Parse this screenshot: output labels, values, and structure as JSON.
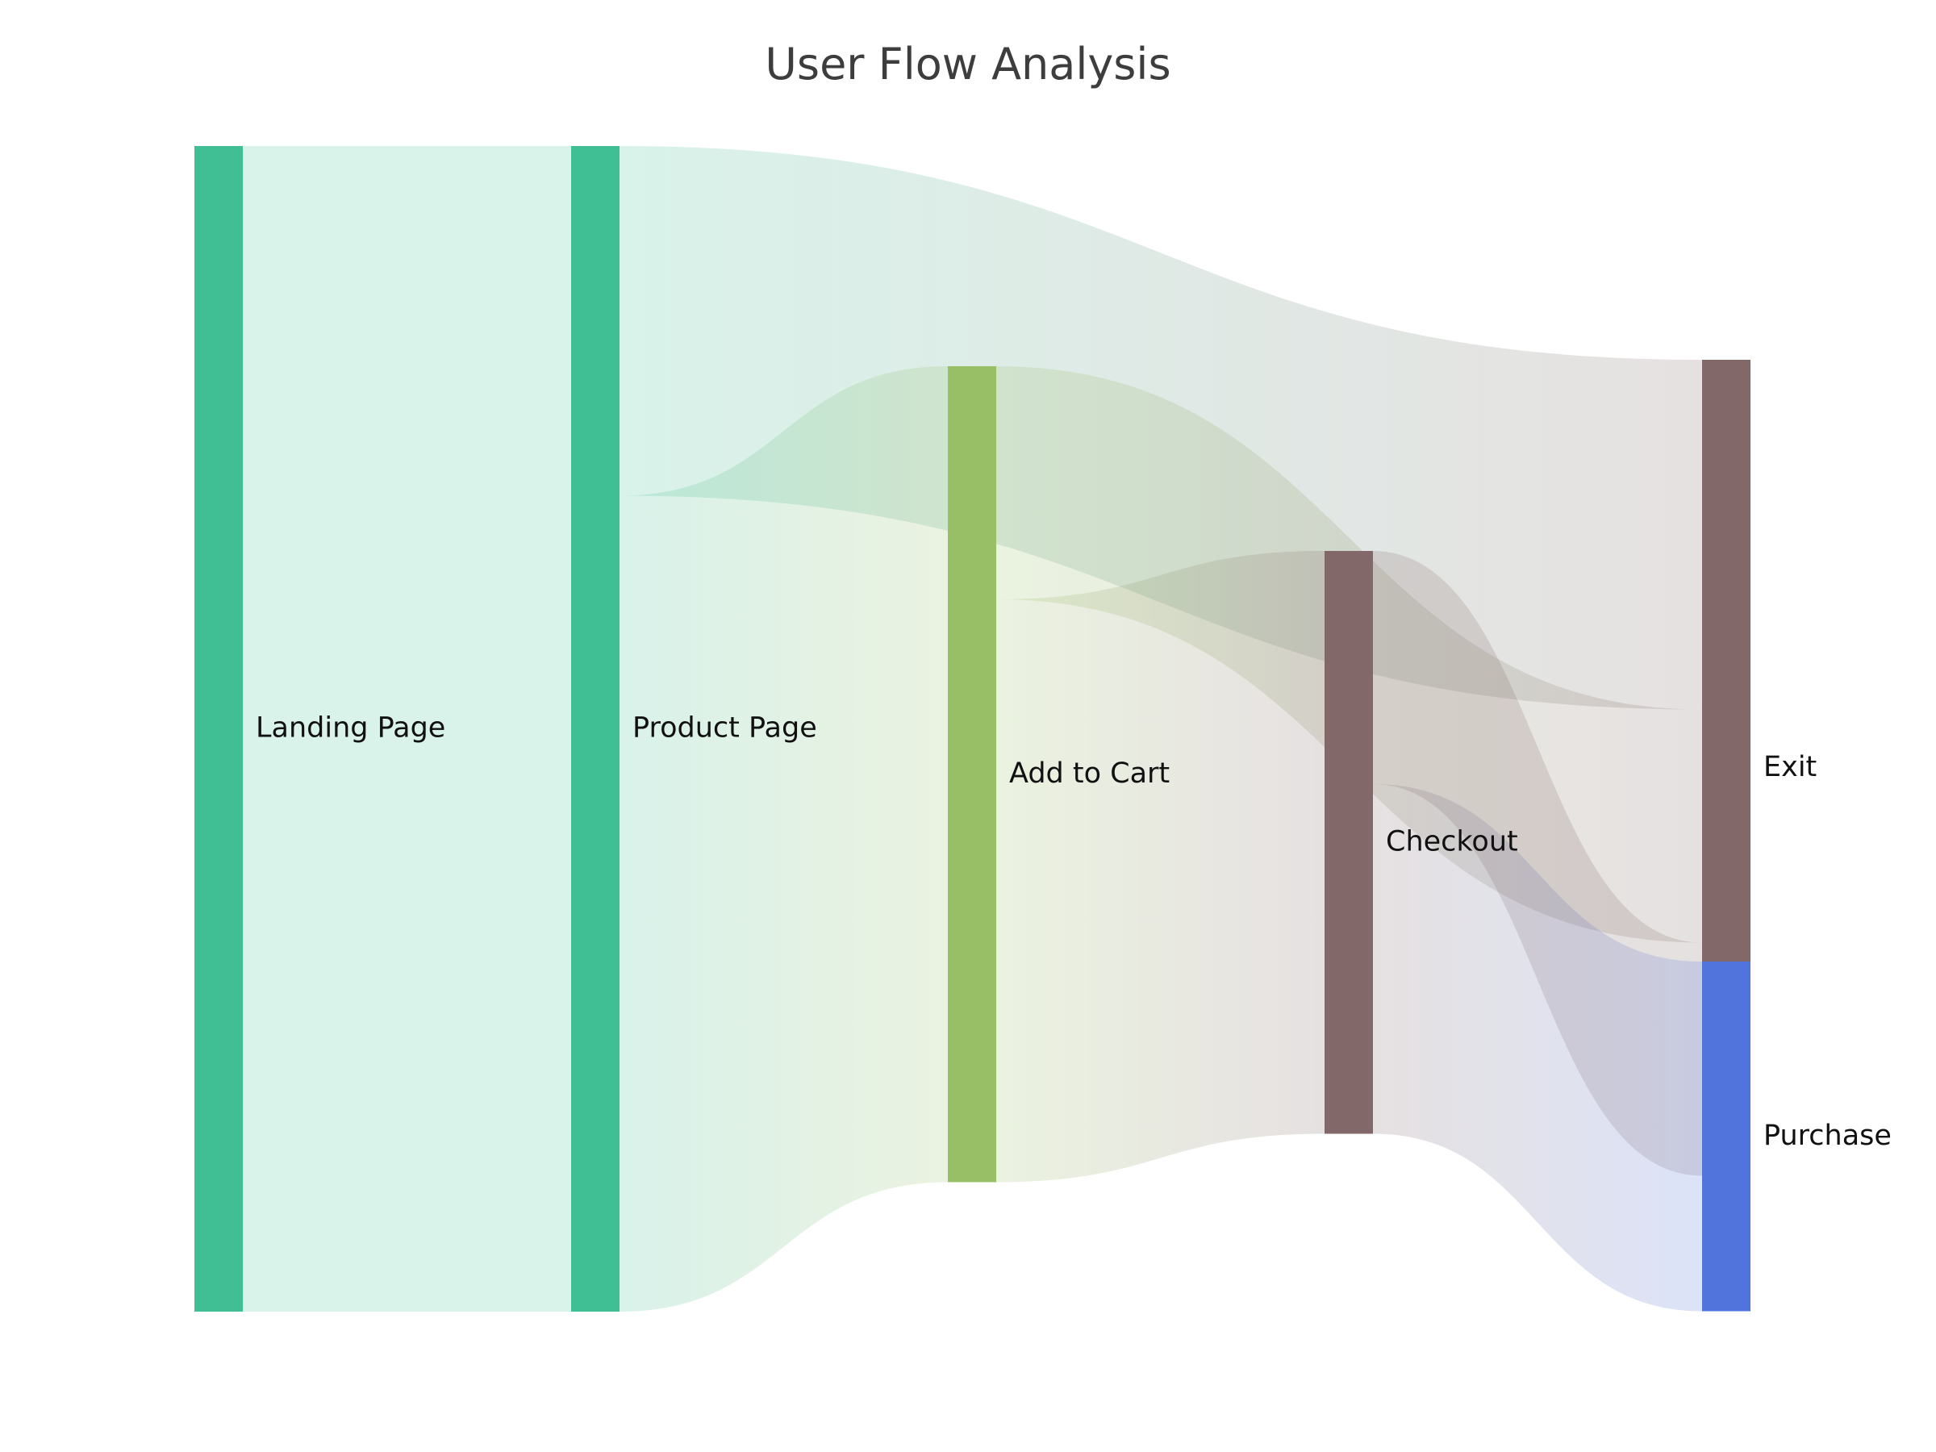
{
  "chart_data": {
    "type": "sankey",
    "title": "User Flow Analysis",
    "nodes": [
      {
        "id": "landing",
        "name": "Landing Page",
        "color": "#40bf94",
        "column": 0
      },
      {
        "id": "product",
        "name": "Product Page",
        "color": "#40bf94",
        "column": 1
      },
      {
        "id": "cart",
        "name": "Add to Cart",
        "color": "#98bf66",
        "column": 2
      },
      {
        "id": "checkout",
        "name": "Checkout",
        "color": "#826868",
        "column": 3
      },
      {
        "id": "exit",
        "name": "Exit",
        "color": "#826868",
        "column": 4
      },
      {
        "id": "purchase",
        "name": "Purchase",
        "color": "#5073dc",
        "column": 4
      }
    ],
    "links": [
      {
        "source": "landing",
        "target": "product",
        "value": 1000
      },
      {
        "source": "product",
        "target": "exit",
        "value": 300
      },
      {
        "source": "product",
        "target": "cart",
        "value": 700
      },
      {
        "source": "cart",
        "target": "exit",
        "value": 200
      },
      {
        "source": "cart",
        "target": "checkout",
        "value": 500
      },
      {
        "source": "checkout",
        "target": "exit",
        "value": 200
      },
      {
        "source": "checkout",
        "target": "purchase",
        "value": 300
      }
    ]
  }
}
